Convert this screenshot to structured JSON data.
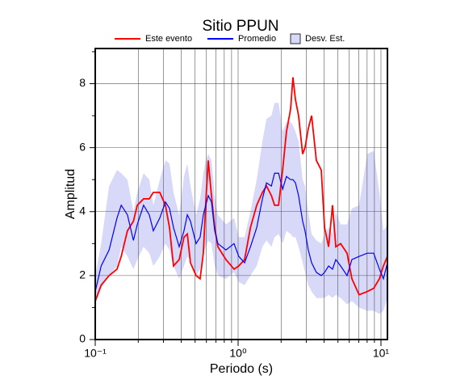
{
  "chart_data": {
    "type": "line",
    "title": "Sitio PPUN",
    "xlabel": "Periodo (s)",
    "ylabel": "Amplitud",
    "xscale": "log",
    "grid": true,
    "xlim": [
      0.1,
      11.1
    ],
    "ylim": [
      0,
      9.1
    ],
    "xticks": [
      {
        "value": 0.1,
        "label": "10⁻¹"
      },
      {
        "value": 1,
        "label": "10⁰"
      },
      {
        "value": 10,
        "label": "10¹"
      }
    ],
    "xminor_ticks": [
      0.2,
      0.3,
      0.4,
      0.5,
      0.6,
      0.7,
      0.8,
      0.9,
      2,
      3,
      4,
      5,
      6,
      7,
      8,
      9
    ],
    "yticks": [
      0,
      2,
      4,
      6,
      8
    ],
    "yminor_ticks": [
      1,
      3,
      5,
      7,
      9
    ],
    "x": [
      0.1,
      0.11,
      0.125,
      0.142,
      0.152,
      0.168,
      0.185,
      0.197,
      0.218,
      0.239,
      0.255,
      0.283,
      0.31,
      0.331,
      0.353,
      0.387,
      0.418,
      0.441,
      0.464,
      0.508,
      0.542,
      0.571,
      0.594,
      0.618,
      0.651,
      0.686,
      0.722,
      0.822,
      0.937,
      1.01,
      1.11,
      1.22,
      1.35,
      1.48,
      1.58,
      1.71,
      1.8,
      1.92,
      2.05,
      2.18,
      2.33,
      2.42,
      2.52,
      2.65,
      2.83,
      2.94,
      3.1,
      3.27,
      3.53,
      3.82,
      4.03,
      4.3,
      4.58,
      4.83,
      5.22,
      5.79,
      6.26,
      7.03,
      8.01,
      8.89,
      9.75,
      10.4,
      11.1
    ],
    "band": {
      "name": "Desv. Est.",
      "color": "#d8d8f8",
      "upper": [
        2.0,
        3.0,
        4.8,
        5.3,
        5.2,
        5.0,
        4.0,
        4.6,
        5.2,
        5.0,
        4.2,
        5.0,
        5.6,
        5.5,
        4.6,
        3.9,
        5.1,
        5.5,
        4.8,
        3.9,
        4.4,
        5.2,
        5.6,
        5.8,
        5.6,
        4.5,
        3.9,
        3.6,
        3.8,
        3.2,
        3.2,
        4.0,
        5.0,
        6.2,
        6.9,
        7.0,
        7.4,
        7.4,
        6.5,
        6.8,
        6.8,
        6.7,
        6.5,
        6.2,
        5.0,
        4.8,
        4.0,
        3.3,
        3.1,
        3.0,
        3.3,
        3.5,
        3.3,
        4.0,
        3.6,
        3.6,
        4.1,
        4.2,
        5.8,
        5.9,
        4.6,
        3.4,
        3.6
      ],
      "lower": [
        1.1,
        1.6,
        2.0,
        2.3,
        2.9,
        2.6,
        2.2,
        2.5,
        2.9,
        2.7,
        2.3,
        2.6,
        3.0,
        2.8,
        2.3,
        1.9,
        2.3,
        2.6,
        2.5,
        2.0,
        2.2,
        2.7,
        2.9,
        3.1,
        3.0,
        2.3,
        2.0,
        1.9,
        2.1,
        1.8,
        1.7,
        2.0,
        2.3,
        2.9,
        3.1,
        2.9,
        3.2,
        3.3,
        3.0,
        3.4,
        3.3,
        3.2,
        3.2,
        2.9,
        2.4,
        2.1,
        1.7,
        1.5,
        1.3,
        1.3,
        1.3,
        1.4,
        1.3,
        1.4,
        1.3,
        1.1,
        1.2,
        1.0,
        0.9,
        0.9,
        0.8,
        0.9,
        1.3
      ]
    },
    "series": [
      {
        "name": "Este evento",
        "color": "#ff0000",
        "values": [
          1.2,
          1.7,
          2.0,
          2.2,
          2.6,
          3.4,
          3.7,
          4.2,
          4.4,
          4.4,
          4.6,
          4.6,
          4.2,
          3.5,
          2.3,
          2.5,
          3.2,
          3.3,
          2.4,
          2.0,
          1.9,
          2.7,
          4.3,
          5.6,
          4.5,
          3.5,
          2.9,
          2.5,
          2.2,
          2.3,
          2.5,
          3.5,
          4.2,
          4.6,
          4.8,
          4.5,
          4.2,
          4.2,
          5.3,
          6.5,
          7.2,
          8.2,
          7.5,
          7.0,
          5.8,
          6.0,
          6.6,
          7.0,
          5.6,
          5.3,
          3.5,
          2.9,
          4.2,
          2.9,
          3.0,
          2.7,
          1.9,
          1.4,
          1.5,
          1.6,
          1.9,
          2.3,
          2.6
        ]
      },
      {
        "name": "Promedio",
        "color": "#0000ff",
        "values": [
          1.5,
          2.3,
          2.8,
          3.8,
          4.2,
          3.9,
          3.1,
          3.6,
          4.2,
          3.9,
          3.4,
          3.8,
          4.3,
          4.1,
          3.5,
          2.9,
          3.4,
          3.9,
          3.7,
          3.0,
          3.2,
          3.9,
          4.2,
          4.5,
          4.3,
          3.4,
          3.0,
          2.8,
          3.0,
          2.6,
          2.4,
          2.9,
          3.5,
          4.4,
          4.9,
          4.8,
          5.2,
          5.2,
          4.7,
          5.1,
          5.0,
          5.0,
          4.9,
          4.5,
          3.7,
          3.4,
          2.8,
          2.4,
          2.1,
          2.0,
          2.1,
          2.3,
          2.2,
          2.5,
          2.3,
          2.0,
          2.5,
          2.6,
          2.7,
          2.7,
          2.2,
          1.9,
          2.4
        ]
      }
    ]
  }
}
